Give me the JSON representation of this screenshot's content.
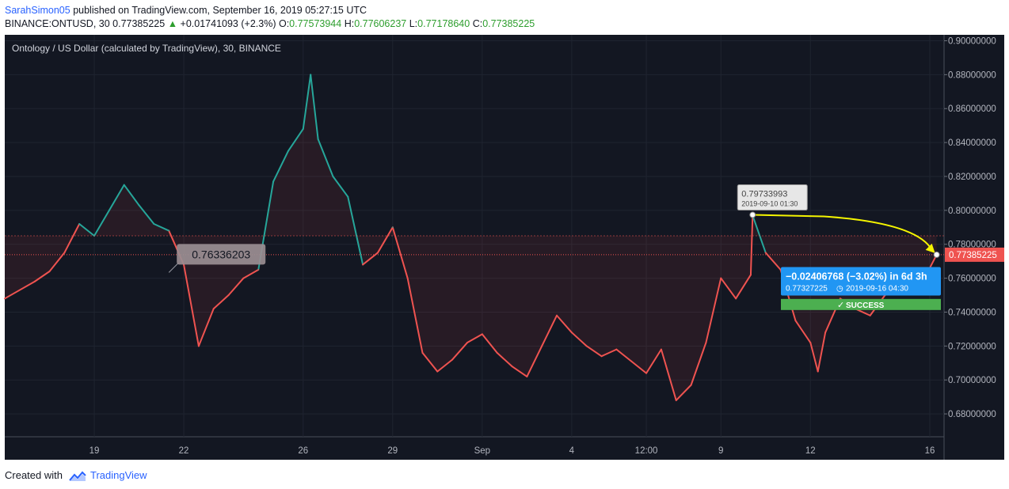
{
  "header": {
    "author": "SarahSimon05",
    "published_text": "published on TradingView.com, September 16, 2019 05:27:15 UTC",
    "symbol": "BINANCE:ONTUSD, 30",
    "last_price": "0.77385225",
    "change_arrow": "▲",
    "change": "+0.01741093 (+2.3%)",
    "o_label": "O:",
    "o_value": "0.77573944",
    "h_label": "H:",
    "h_value": "0.77606237",
    "l_label": "L:",
    "l_value": "0.77178640",
    "c_label": "C:",
    "c_value": "0.77385225"
  },
  "chart_title": "Ontology / US Dollar (calculated by TradingView), 30, BINANCE",
  "footer": {
    "created_with": "Created with",
    "brand": "TradingView"
  },
  "colors": {
    "background": "#131722",
    "up": "#26a69a",
    "down": "#ef5350",
    "dashed_line": "#ef5350",
    "arrow": "#f5f500",
    "price_tag": "#ef5350",
    "info_box": "#2196f3",
    "success": "#4caf50"
  },
  "chart_data": {
    "type": "line",
    "x_tick_labels": [
      "19",
      "22",
      "26",
      "29",
      "Sep",
      "4",
      "12:00",
      "9",
      "12",
      "16"
    ],
    "y_tick_labels": [
      "0.90000000",
      "0.88000000",
      "0.86000000",
      "0.84000000",
      "0.82000000",
      "0.80000000",
      "0.78000000",
      "0.76000000",
      "0.74000000",
      "0.72000000",
      "0.70000000",
      "0.68000000"
    ],
    "ylim": [
      0.6665,
      0.9035
    ],
    "xlim": [
      "2019-08-16",
      "2019-09-16"
    ],
    "series": [
      {
        "points": [
          [
            "2019-08-16",
            0.748
          ],
          [
            "2019-08-17",
            0.758
          ],
          [
            "2019-08-17 12:00",
            0.764
          ],
          [
            "2019-08-18",
            0.775
          ],
          [
            "2019-08-18 12:00",
            0.792
          ],
          [
            "2019-08-19",
            0.785
          ],
          [
            "2019-08-19 12:00",
            0.8
          ],
          [
            "2019-08-20",
            0.815
          ],
          [
            "2019-08-20 12:00",
            0.803
          ],
          [
            "2019-08-21",
            0.792
          ],
          [
            "2019-08-21 12:00",
            0.788
          ],
          [
            "2019-08-22",
            0.768
          ],
          [
            "2019-08-22 12:00",
            0.72
          ],
          [
            "2019-08-23",
            0.742
          ],
          [
            "2019-08-23 12:00",
            0.75
          ],
          [
            "2019-08-24",
            0.76
          ],
          [
            "2019-08-24 12:00",
            0.765
          ],
          [
            "2019-08-25",
            0.817
          ],
          [
            "2019-08-25 12:00",
            0.835
          ],
          [
            "2019-08-26",
            0.848
          ],
          [
            "2019-08-26 06:00",
            0.88
          ],
          [
            "2019-08-26 12:00",
            0.842
          ],
          [
            "2019-08-27",
            0.82
          ],
          [
            "2019-08-27 12:00",
            0.808
          ],
          [
            "2019-08-28",
            0.768
          ],
          [
            "2019-08-28 12:00",
            0.775
          ],
          [
            "2019-08-29",
            0.79
          ],
          [
            "2019-08-29 12:00",
            0.76
          ],
          [
            "2019-08-30",
            0.716
          ],
          [
            "2019-08-30 12:00",
            0.705
          ],
          [
            "2019-08-31",
            0.712
          ],
          [
            "2019-08-31 12:00",
            0.722
          ],
          [
            "2019-09-01",
            0.727
          ],
          [
            "2019-09-01 12:00",
            0.716
          ],
          [
            "2019-09-02",
            0.708
          ],
          [
            "2019-09-02 12:00",
            0.702
          ],
          [
            "2019-09-03",
            0.72
          ],
          [
            "2019-09-03 12:00",
            0.738
          ],
          [
            "2019-09-04",
            0.728
          ],
          [
            "2019-09-04 12:00",
            0.72
          ],
          [
            "2019-09-05",
            0.714
          ],
          [
            "2019-09-05 12:00",
            0.718
          ],
          [
            "2019-09-06",
            0.711
          ],
          [
            "2019-09-06 12:00",
            0.704
          ],
          [
            "2019-09-07",
            0.718
          ],
          [
            "2019-09-07 12:00",
            0.688
          ],
          [
            "2019-09-08",
            0.697
          ],
          [
            "2019-09-08 12:00",
            0.722
          ],
          [
            "2019-09-09",
            0.76
          ],
          [
            "2019-09-09 12:00",
            0.748
          ],
          [
            "2019-09-10",
            0.762
          ],
          [
            "2019-09-10 01:30",
            0.797
          ],
          [
            "2019-09-10 12:00",
            0.775
          ],
          [
            "2019-09-11",
            0.765
          ],
          [
            "2019-09-11 12:00",
            0.735
          ],
          [
            "2019-09-12",
            0.722
          ],
          [
            "2019-09-12 06:00",
            0.705
          ],
          [
            "2019-09-12 12:00",
            0.728
          ],
          [
            "2019-09-13",
            0.748
          ],
          [
            "2019-09-13 12:00",
            0.742
          ],
          [
            "2019-09-14",
            0.738
          ],
          [
            "2019-09-14 12:00",
            0.75
          ],
          [
            "2019-09-15",
            0.755
          ],
          [
            "2019-09-15 12:00",
            0.762
          ],
          [
            "2019-09-16",
            0.766
          ],
          [
            "2019-09-16 05:30",
            0.77385225
          ]
        ]
      }
    ],
    "current_price_label": "0.77385225",
    "callout_low": "0.76336203",
    "callout_high": {
      "price": "0.79733993",
      "time": "2019-09-10 01:30"
    },
    "measure": {
      "change": "−0.02406768 (−3.02%)",
      "duration": "in 6d 3h",
      "end_price": "0.77327225",
      "end_time": "2019-09-16  04:30",
      "status": "SUCCESS"
    }
  }
}
